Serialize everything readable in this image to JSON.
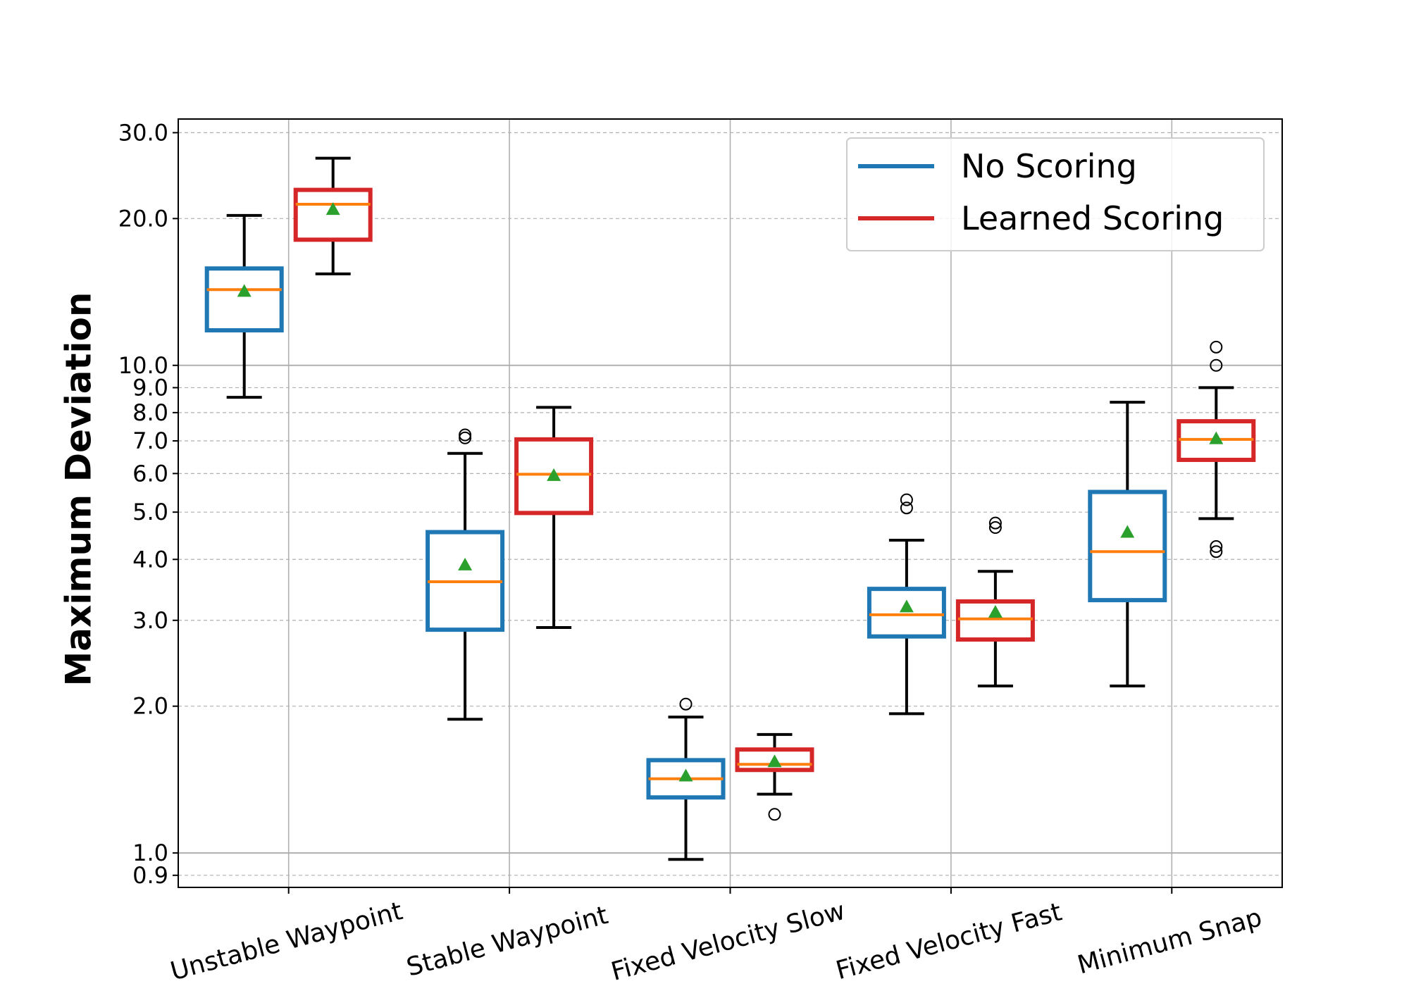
{
  "chart_data": {
    "type": "box",
    "ylabel": "Maximum Deviation",
    "xlabel": "",
    "title": "",
    "yscale": "log",
    "ylim": [
      0.85,
      32
    ],
    "yticks": [
      {
        "value": 0.9,
        "label": "0.9"
      },
      {
        "value": 1.0,
        "label": "1.0"
      },
      {
        "value": 2.0,
        "label": "2.0"
      },
      {
        "value": 3.0,
        "label": "3.0"
      },
      {
        "value": 4.0,
        "label": "4.0"
      },
      {
        "value": 5.0,
        "label": "5.0"
      },
      {
        "value": 6.0,
        "label": "6.0"
      },
      {
        "value": 7.0,
        "label": "7.0"
      },
      {
        "value": 8.0,
        "label": "8.0"
      },
      {
        "value": 9.0,
        "label": "9.0"
      },
      {
        "value": 10.0,
        "label": "10.0"
      },
      {
        "value": 20.0,
        "label": "20.0"
      },
      {
        "value": 30.0,
        "label": "30.0"
      }
    ],
    "categories": [
      "Unstable Waypoint",
      "Stable Waypoint",
      "Fixed Velocity Slow",
      "Fixed Velocity Fast",
      "Minimum Snap"
    ],
    "grid": true,
    "legend_position": "top-right",
    "series": [
      {
        "name": "No Scoring",
        "color": "#1f77b4",
        "boxes": [
          {
            "whislo": 8.6,
            "q1": 11.8,
            "med": 14.3,
            "q3": 15.8,
            "whishi": 20.3,
            "mean": 14.2,
            "fliers": []
          },
          {
            "whislo": 1.88,
            "q1": 2.87,
            "med": 3.6,
            "q3": 4.55,
            "whishi": 6.6,
            "mean": 3.9,
            "fliers": [
              7.1,
              7.2
            ]
          },
          {
            "whislo": 0.97,
            "q1": 1.3,
            "med": 1.42,
            "q3": 1.55,
            "whishi": 1.9,
            "mean": 1.44,
            "fliers": [
              2.02
            ]
          },
          {
            "whislo": 1.93,
            "q1": 2.78,
            "med": 3.08,
            "q3": 3.48,
            "whishi": 4.38,
            "mean": 3.2,
            "fliers": [
              5.1,
              5.3
            ]
          },
          {
            "whislo": 2.2,
            "q1": 3.3,
            "med": 4.15,
            "q3": 5.5,
            "whishi": 8.4,
            "mean": 4.55,
            "fliers": []
          }
        ]
      },
      {
        "name": "Learned Scoring",
        "color": "#d62728",
        "boxes": [
          {
            "whislo": 15.4,
            "q1": 18.1,
            "med": 21.4,
            "q3": 22.9,
            "whishi": 26.6,
            "mean": 20.9,
            "fliers": []
          },
          {
            "whislo": 2.9,
            "q1": 4.98,
            "med": 5.98,
            "q3": 7.05,
            "whishi": 8.2,
            "mean": 5.95,
            "fliers": []
          },
          {
            "whislo": 1.32,
            "q1": 1.48,
            "med": 1.52,
            "q3": 1.63,
            "whishi": 1.75,
            "mean": 1.54,
            "fliers": [
              1.2
            ]
          },
          {
            "whislo": 2.2,
            "q1": 2.74,
            "med": 3.02,
            "q3": 3.28,
            "whishi": 3.78,
            "mean": 3.12,
            "fliers": [
              4.65,
              4.75
            ]
          },
          {
            "whislo": 4.85,
            "q1": 6.4,
            "med": 7.05,
            "q3": 7.68,
            "whishi": 9.0,
            "mean": 7.08,
            "fliers": [
              4.15,
              4.25,
              10.0,
              10.9
            ]
          }
        ]
      }
    ],
    "median_color": "#ff7f0e",
    "mean_color": "#2ca02c"
  }
}
